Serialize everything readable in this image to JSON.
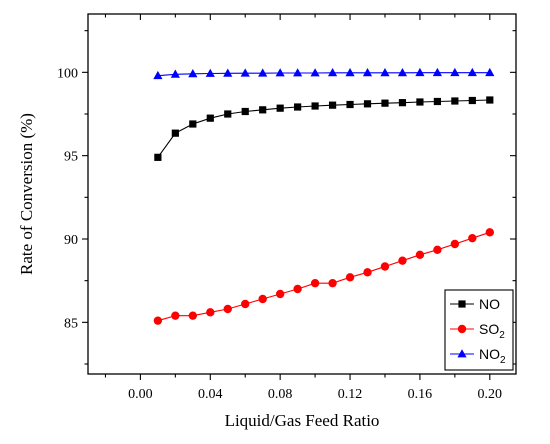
{
  "chart_data": {
    "type": "line",
    "xlabel": "Liquid/Gas Feed Ratio",
    "ylabel": "Rate of Conversion (%)",
    "xlim": [
      -0.03,
      0.215
    ],
    "ylim": [
      81.9,
      103.5
    ],
    "x_ticks": [
      0.0,
      0.04,
      0.08,
      0.12,
      0.16,
      0.2
    ],
    "x_tick_labels": [
      "0.00",
      "0.04",
      "0.08",
      "0.12",
      "0.16",
      "0.20"
    ],
    "y_ticks": [
      85,
      90,
      95,
      100
    ],
    "y_tick_labels": [
      "85",
      "90",
      "95",
      "100"
    ],
    "legend_position": "bottom-right",
    "x": [
      0.01,
      0.02,
      0.03,
      0.04,
      0.05,
      0.06,
      0.07,
      0.08,
      0.09,
      0.1,
      0.11,
      0.12,
      0.13,
      0.14,
      0.15,
      0.16,
      0.17,
      0.18,
      0.19,
      0.2
    ],
    "series": [
      {
        "name": "NO",
        "name_main": "NO",
        "name_sub": "",
        "marker": "square",
        "color": "#000000",
        "values": [
          94.9,
          96.35,
          96.9,
          97.25,
          97.5,
          97.65,
          97.75,
          97.85,
          97.92,
          97.98,
          98.03,
          98.07,
          98.11,
          98.15,
          98.18,
          98.22,
          98.25,
          98.28,
          98.31,
          98.34
        ]
      },
      {
        "name": "SO2",
        "name_main": "SO",
        "name_sub": "2",
        "marker": "circle",
        "color": "#ff0000",
        "values": [
          85.1,
          85.4,
          85.4,
          85.6,
          85.8,
          86.1,
          86.4,
          86.7,
          87.0,
          87.35,
          87.35,
          87.7,
          88.0,
          88.35,
          88.7,
          89.05,
          89.35,
          89.7,
          90.05,
          90.4
        ]
      },
      {
        "name": "NO2",
        "name_main": "NO",
        "name_sub": "2",
        "marker": "triangle",
        "color": "#0000ff",
        "values": [
          99.8,
          99.88,
          99.91,
          99.93,
          99.94,
          99.95,
          99.95,
          99.96,
          99.96,
          99.96,
          99.97,
          99.97,
          99.97,
          99.97,
          99.97,
          99.98,
          99.98,
          99.98,
          99.98,
          99.98
        ]
      }
    ]
  }
}
